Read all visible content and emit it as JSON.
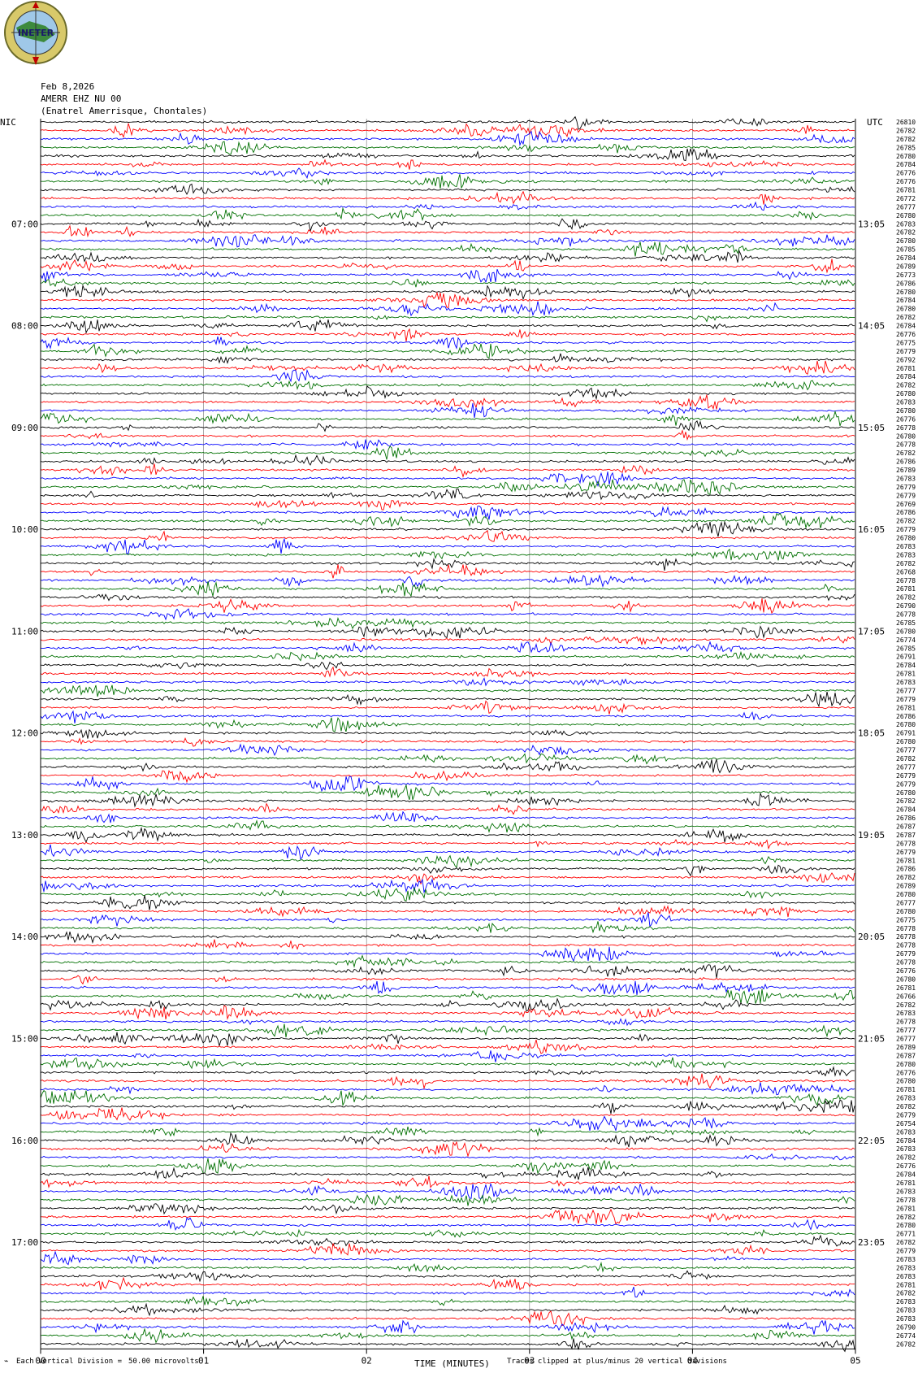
{
  "header": {
    "date": "Feb 8,2026",
    "station": "AMERR EHZ NU 00",
    "location": "(Enatrel Amerrisque, Chontales)",
    "logo_text": "INETER"
  },
  "axis": {
    "left_tz": "NIC",
    "right_tz": "UTC",
    "xlabel": "TIME (MINUTES)",
    "xticks": [
      "00",
      "01",
      "02",
      "03",
      "04",
      "05"
    ]
  },
  "footer": {
    "scale_label": "Each Vertical Division =",
    "scale_value": "50.00 microvolts",
    "clip_note": "Traces clipped at plus/minus 20 vertical divisions"
  },
  "colors": {
    "cycle": [
      "#000000",
      "#ff0000",
      "#0000ff",
      "#007000"
    ],
    "grid": "#888888"
  },
  "chart_data": {
    "type": "line",
    "x_range_minutes": [
      0,
      5
    ],
    "traces_per_hour": 12,
    "left_hour_labels": [
      "07:00",
      "08:00",
      "09:00",
      "10:00",
      "11:00",
      "12:00",
      "13:00",
      "14:00",
      "15:00",
      "16:00",
      "17:00"
    ],
    "right_hour_labels": [
      "13:05",
      "14:05",
      "15:05",
      "16:05",
      "17:05",
      "18:05",
      "19:05",
      "20:05",
      "21:05",
      "22:05",
      "23:05"
    ],
    "right_trace_values": [
      "26810",
      "26782",
      "26782",
      "26785",
      "26780",
      "26784",
      "26776",
      "26776",
      "26781",
      "26772",
      "26777",
      "26780",
      "26783",
      "26782",
      "26780",
      "26785",
      "26784",
      "26789",
      "26773",
      "26786",
      "26780",
      "26784",
      "26780",
      "26782",
      "26784",
      "26776",
      "26775",
      "26779",
      "26792",
      "26781",
      "26784",
      "26782",
      "26780",
      "26783",
      "26780",
      "26776",
      "26778",
      "26780",
      "26778",
      "26782",
      "26786",
      "26789",
      "26783",
      "26779",
      "26779",
      "26769",
      "26786",
      "26782",
      "26779",
      "26780",
      "26783",
      "26783",
      "26782",
      "26768",
      "26778",
      "26781",
      "26782",
      "26790",
      "26778",
      "26785",
      "26780",
      "26774",
      "26785",
      "26791",
      "26784",
      "26781",
      "26783",
      "26777",
      "26779",
      "26781",
      "26786",
      "26780",
      "26791",
      "26780",
      "26777",
      "26782",
      "26777",
      "26779",
      "26779",
      "26780",
      "26782",
      "26784",
      "26786",
      "26787",
      "26787",
      "26778",
      "26779",
      "26781",
      "26786",
      "26782",
      "26789",
      "26780",
      "26777",
      "26780",
      "26775",
      "26778",
      "26778",
      "26778",
      "26779",
      "26778",
      "26776",
      "26780",
      "26781",
      "26766",
      "26782",
      "26783",
      "26778",
      "26777",
      "26777",
      "26789",
      "26787",
      "26780",
      "26776",
      "26780",
      "26781",
      "26783",
      "26782",
      "26779",
      "26754",
      "26783",
      "26784",
      "26783",
      "26782",
      "26776",
      "26784",
      "26781",
      "26783",
      "26778",
      "26781",
      "26782",
      "26780",
      "26771",
      "26782",
      "26779",
      "26783",
      "26783",
      "26783",
      "26781",
      "26782",
      "26783",
      "26783",
      "26783",
      "26790",
      "26774",
      "26782"
    ]
  }
}
